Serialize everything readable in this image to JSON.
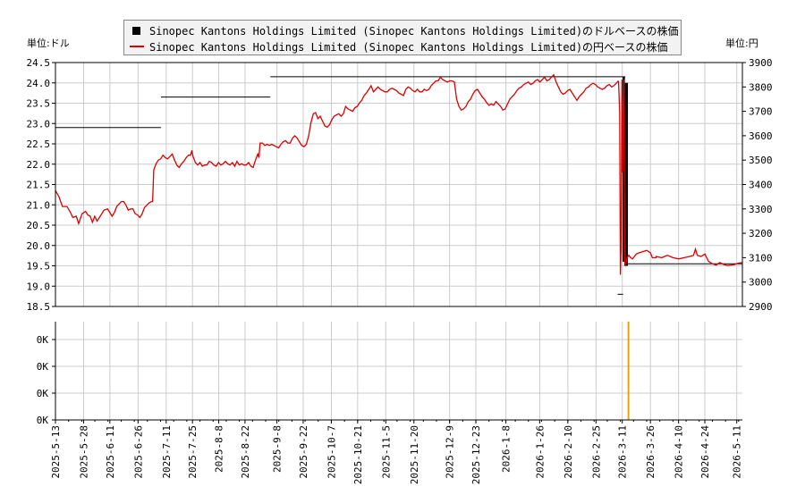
{
  "chart_data": {
    "type": "line",
    "legend": [
      {
        "name": "Sinopec Kantons Holdings Limited (Sinopec Kantons Holdings Limited)のドルベースの株価",
        "style": "box",
        "color": "#000000"
      },
      {
        "name": "Sinopec Kantons Holdings Limited (Sinopec Kantons Holdings Limited)の円ベースの株価",
        "style": "line",
        "color": "#dd0000"
      }
    ],
    "legend_placement": "top-center",
    "left_unit_label": "単位:ドル",
    "right_unit_label": "単位:円",
    "grid": true,
    "price_panel": {
      "yleft_range": [
        18.5,
        24.5
      ],
      "yleft_ticks": [
        "18.5",
        "19.0",
        "19.5",
        "20.0",
        "20.5",
        "21.0",
        "21.5",
        "22.0",
        "22.5",
        "23.0",
        "23.5",
        "24.0",
        "24.5"
      ],
      "yright_range": [
        2900,
        3900
      ],
      "yright_ticks": [
        "2900",
        "3000",
        "3100",
        "3200",
        "3300",
        "3400",
        "3500",
        "3600",
        "3700",
        "3800",
        "3900"
      ]
    },
    "volume_panel": {
      "y_ticks": [
        "0K",
        "0K",
        "0K",
        "0K"
      ],
      "bars": [
        {
          "x": "2026-03-18",
          "value": 0,
          "color": "#f0a000"
        }
      ]
    },
    "x_ticks": [
      "2025-5-13",
      "2025-5-28",
      "2025-6-11",
      "2025-6-26",
      "2025-7-11",
      "2025-7-25",
      "2025-8-8",
      "2025-8-22",
      "2025-9-8",
      "2025-9-22",
      "2025-10-7",
      "2025-10-21",
      "2025-11-5",
      "2025-11-20",
      "2025-12-9",
      "2025-12-23",
      "2026-1-8",
      "2026-1-26",
      "2026-2-10",
      "2026-2-25",
      "2026-3-11",
      "2026-3-26",
      "2026-4-10",
      "2026-4-24",
      "2026-5-11"
    ],
    "series": [
      {
        "name": "Sinopec Kantons Holdings Limited (Sinopec Kantons Holdings Limited)のドルベースの株価",
        "axis": "left",
        "color": "#000000",
        "segments": [
          {
            "x": [
              0.0,
              56.2
            ],
            "y": [
              22.9,
              22.9
            ]
          },
          {
            "x": [
              56.2,
              114.5
            ],
            "y": [
              23.65,
              23.65
            ]
          },
          {
            "x": [
              114.5,
              302.5
            ],
            "y": [
              24.15,
              24.15
            ]
          },
          {
            "x": [
              302.5,
              303.6
            ],
            "y": [
              24.15,
              24.15
            ]
          },
          {
            "x": [
              303.6,
              304.4
            ],
            "y": [
              19.95,
              19.95
            ]
          },
          {
            "x": [
              304.4,
              366.0
            ],
            "y": [
              19.55,
              19.55
            ]
          }
        ],
        "bars": [
          {
            "x": 302.7,
            "low": 19.6,
            "high": 24.15
          },
          {
            "x": 303.6,
            "low": 19.5,
            "high": 24.0
          },
          {
            "x": 304.3,
            "low": 19.5,
            "high": 24.0
          }
        ],
        "marks": [
          {
            "x": 301.0,
            "y": 18.8
          }
        ]
      },
      {
        "name": "Sinopec Kantons Holdings Limited (Sinopec Kantons Holdings Limited)の円ベースの株価",
        "axis": "right",
        "color": "#dd0000",
        "points": [
          [
            0,
            3375
          ],
          [
            3,
            3350
          ],
          [
            6,
            3310
          ],
          [
            10,
            3310
          ],
          [
            13,
            3285
          ],
          [
            15,
            3265
          ],
          [
            18,
            3270
          ],
          [
            20,
            3240
          ],
          [
            23,
            3280
          ],
          [
            26,
            3290
          ],
          [
            28,
            3275
          ],
          [
            30,
            3270
          ],
          [
            32,
            3245
          ],
          [
            34,
            3270
          ],
          [
            36,
            3250
          ],
          [
            38,
            3265
          ],
          [
            40,
            3280
          ],
          [
            42,
            3295
          ],
          [
            45,
            3300
          ],
          [
            47,
            3285
          ],
          [
            49,
            3270
          ],
          [
            51,
            3285
          ],
          [
            53,
            3310
          ],
          [
            55,
            3320
          ],
          [
            57,
            3330
          ],
          [
            59,
            3330
          ],
          [
            61,
            3315
          ],
          [
            63,
            3295
          ],
          [
            65,
            3300
          ],
          [
            67,
            3300
          ],
          [
            69,
            3280
          ],
          [
            71,
            3275
          ],
          [
            73,
            3265
          ],
          [
            75,
            3280
          ],
          [
            77,
            3305
          ],
          [
            79,
            3315
          ],
          [
            81,
            3325
          ],
          [
            83,
            3330
          ],
          [
            84,
            3330
          ],
          [
            85,
            3460
          ],
          [
            87,
            3485
          ],
          [
            89,
            3500
          ],
          [
            91,
            3505
          ],
          [
            93,
            3520
          ],
          [
            95,
            3510
          ],
          [
            97,
            3505
          ],
          [
            99,
            3515
          ],
          [
            101,
            3525
          ],
          [
            103,
            3500
          ],
          [
            105,
            3480
          ],
          [
            107,
            3470
          ],
          [
            109,
            3485
          ],
          [
            111,
            3495
          ],
          [
            113,
            3510
          ],
          [
            115,
            3520
          ],
          [
            117,
            3520
          ],
          [
            118,
            3540
          ],
          [
            119,
            3515
          ],
          [
            121,
            3490
          ],
          [
            123,
            3480
          ],
          [
            125,
            3490
          ],
          [
            127,
            3475
          ],
          [
            129,
            3480
          ],
          [
            131,
            3480
          ],
          [
            133,
            3495
          ],
          [
            135,
            3490
          ],
          [
            137,
            3480
          ],
          [
            139,
            3475
          ],
          [
            141,
            3490
          ],
          [
            143,
            3480
          ],
          [
            145,
            3485
          ],
          [
            147,
            3495
          ],
          [
            149,
            3485
          ],
          [
            151,
            3480
          ],
          [
            153,
            3490
          ],
          [
            155,
            3475
          ],
          [
            157,
            3495
          ],
          [
            159,
            3480
          ],
          [
            161,
            3485
          ],
          [
            163,
            3480
          ],
          [
            165,
            3480
          ],
          [
            167,
            3490
          ],
          [
            169,
            3475
          ],
          [
            171,
            3470
          ],
          [
            173,
            3500
          ],
          [
            175,
            3525
          ],
          [
            176,
            3510
          ],
          [
            177,
            3570
          ],
          [
            179,
            3570
          ],
          [
            181,
            3560
          ],
          [
            183,
            3565
          ],
          [
            185,
            3560
          ],
          [
            187,
            3565
          ],
          [
            189,
            3560
          ],
          [
            191,
            3555
          ],
          [
            193,
            3550
          ],
          [
            195,
            3565
          ],
          [
            197,
            3575
          ],
          [
            199,
            3580
          ],
          [
            201,
            3570
          ],
          [
            203,
            3570
          ],
          [
            205,
            3590
          ],
          [
            207,
            3600
          ],
          [
            209,
            3590
          ],
          [
            211,
            3575
          ],
          [
            213,
            3560
          ],
          [
            215,
            3555
          ],
          [
            217,
            3565
          ],
          [
            219,
            3600
          ],
          [
            221,
            3655
          ],
          [
            223,
            3690
          ],
          [
            225,
            3695
          ],
          [
            227,
            3670
          ],
          [
            229,
            3680
          ],
          [
            231,
            3660
          ],
          [
            233,
            3640
          ],
          [
            235,
            3635
          ],
          [
            237,
            3645
          ],
          [
            239,
            3665
          ],
          [
            241,
            3680
          ],
          [
            243,
            3685
          ],
          [
            245,
            3690
          ],
          [
            247,
            3680
          ],
          [
            249,
            3690
          ],
          [
            251,
            3720
          ],
          [
            253,
            3710
          ],
          [
            255,
            3705
          ],
          [
            257,
            3700
          ],
          [
            259,
            3715
          ],
          [
            261,
            3720
          ],
          [
            263,
            3735
          ],
          [
            265,
            3745
          ],
          [
            267,
            3765
          ],
          [
            269,
            3775
          ],
          [
            271,
            3790
          ],
          [
            273,
            3805
          ],
          [
            275,
            3780
          ],
          [
            277,
            3790
          ],
          [
            279,
            3800
          ],
          [
            281,
            3790
          ],
          [
            283,
            3785
          ],
          [
            285,
            3780
          ],
          [
            287,
            3780
          ],
          [
            289,
            3790
          ],
          [
            291,
            3795
          ],
          [
            293,
            3790
          ],
          [
            295,
            3785
          ],
          [
            297,
            3775
          ],
          [
            299,
            3770
          ],
          [
            301,
            3765
          ],
          [
            303,
            3790
          ],
          [
            305,
            3800
          ],
          [
            307,
            3795
          ],
          [
            309,
            3785
          ],
          [
            311,
            3780
          ],
          [
            313,
            3790
          ],
          [
            315,
            3780
          ],
          [
            317,
            3780
          ],
          [
            319,
            3790
          ],
          [
            321,
            3785
          ],
          [
            323,
            3790
          ],
          [
            325,
            3805
          ],
          [
            327,
            3815
          ],
          [
            329,
            3825
          ],
          [
            331,
            3825
          ],
          [
            333,
            3840
          ],
          [
            335,
            3830
          ],
          [
            337,
            3825
          ],
          [
            339,
            3820
          ],
          [
            341,
            3825
          ],
          [
            343,
            3825
          ],
          [
            345,
            3820
          ],
          [
            347,
            3750
          ],
          [
            349,
            3720
          ],
          [
            351,
            3705
          ],
          [
            353,
            3710
          ],
          [
            355,
            3720
          ],
          [
            357,
            3740
          ],
          [
            359,
            3750
          ],
          [
            361,
            3770
          ],
          [
            363,
            3785
          ],
          [
            365,
            3790
          ],
          [
            367,
            3775
          ],
          [
            369,
            3760
          ],
          [
            371,
            3750
          ],
          [
            373,
            3735
          ],
          [
            375,
            3725
          ],
          [
            377,
            3730
          ],
          [
            379,
            3725
          ],
          [
            381,
            3740
          ],
          [
            383,
            3730
          ],
          [
            385,
            3720
          ],
          [
            387,
            3705
          ],
          [
            389,
            3710
          ],
          [
            391,
            3730
          ],
          [
            393,
            3750
          ],
          [
            395,
            3760
          ],
          [
            397,
            3770
          ],
          [
            399,
            3785
          ],
          [
            401,
            3795
          ],
          [
            403,
            3800
          ],
          [
            405,
            3810
          ],
          [
            407,
            3815
          ],
          [
            409,
            3820
          ],
          [
            411,
            3810
          ],
          [
            413,
            3815
          ],
          [
            415,
            3825
          ],
          [
            417,
            3830
          ],
          [
            419,
            3820
          ],
          [
            421,
            3830
          ],
          [
            423,
            3840
          ],
          [
            425,
            3825
          ],
          [
            427,
            3830
          ],
          [
            429,
            3840
          ],
          [
            431,
            3850
          ],
          [
            433,
            3820
          ],
          [
            435,
            3800
          ],
          [
            437,
            3780
          ],
          [
            439,
            3770
          ],
          [
            441,
            3775
          ],
          [
            443,
            3785
          ],
          [
            445,
            3790
          ],
          [
            447,
            3775
          ],
          [
            449,
            3760
          ],
          [
            451,
            3745
          ],
          [
            453,
            3760
          ],
          [
            455,
            3770
          ],
          [
            457,
            3780
          ],
          [
            459,
            3795
          ],
          [
            461,
            3800
          ],
          [
            463,
            3810
          ],
          [
            465,
            3815
          ],
          [
            467,
            3810
          ],
          [
            469,
            3800
          ],
          [
            471,
            3795
          ],
          [
            473,
            3790
          ],
          [
            475,
            3795
          ],
          [
            477,
            3805
          ],
          [
            479,
            3810
          ],
          [
            481,
            3800
          ],
          [
            483,
            3805
          ],
          [
            485,
            3815
          ],
          [
            487,
            3825
          ]
        ]
      }
    ],
    "price_line_total_days": 366
  }
}
